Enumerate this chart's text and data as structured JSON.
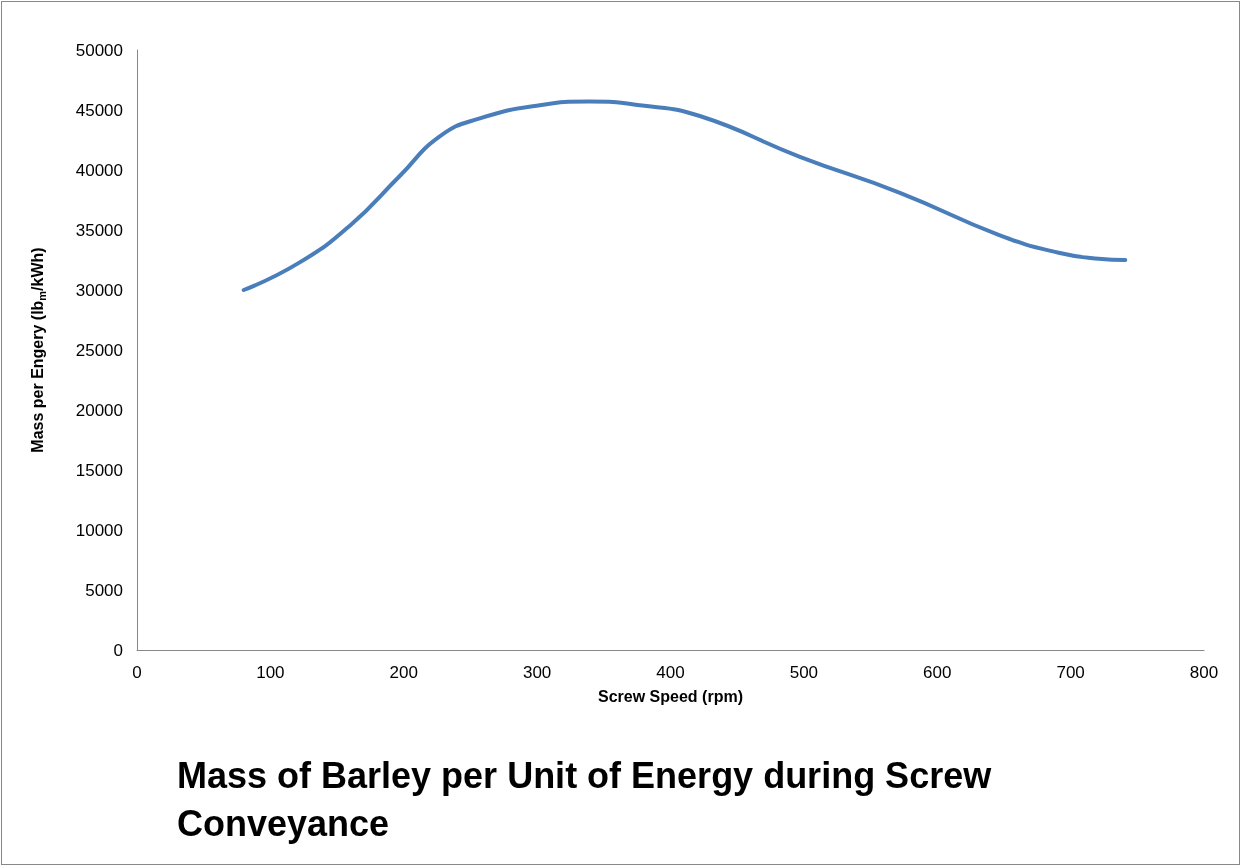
{
  "chart_data": {
    "type": "line",
    "title": "Mass of Barley per Unit of Energy during Screw Conveyance",
    "xlabel": "Screw Speed (rpm)",
    "ylabel": "Mass per Engery (lb$_{m}$/kWh)",
    "series": [
      {
        "color": "#4a7ebb",
        "x": [
          80,
          122,
          160,
          197,
          227,
          257,
          302,
          339,
          377,
          422,
          497,
          572,
          646,
          691,
          721,
          741
        ],
        "values": [
          30000,
          32300,
          35400,
          39500,
          42800,
          44300,
          45400,
          45700,
          45400,
          44500,
          41100,
          38100,
          34600,
          33100,
          32600,
          32500
        ]
      }
    ],
    "xlim": [
      0,
      800
    ],
    "xticks": [
      0,
      100,
      200,
      300,
      400,
      500,
      600,
      700,
      800
    ],
    "ylim": [
      0,
      50000
    ],
    "yticks": [
      0,
      5000,
      10000,
      15000,
      20000,
      25000,
      30000,
      35000,
      40000,
      45000,
      50000
    ],
    "grid": false,
    "marker": "none",
    "line_style": "solid"
  }
}
